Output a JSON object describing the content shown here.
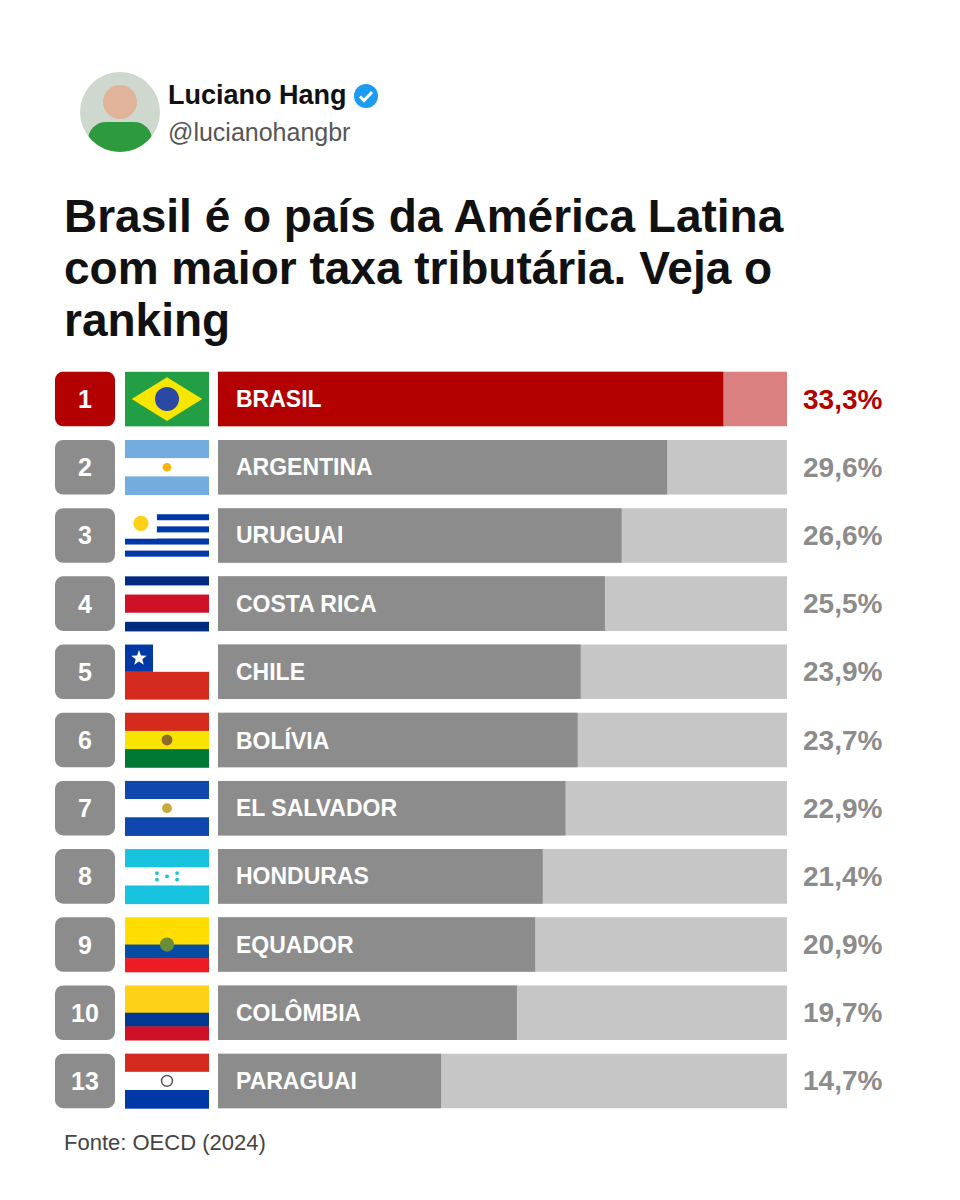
{
  "header": {
    "name": "Luciano Hang",
    "handle": "@lucianohangbr"
  },
  "chart_data": {
    "type": "bar",
    "orientation": "horizontal",
    "title": "Brasil é o país da América Latina com maior taxa tributária. Veja o ranking",
    "categories": [
      "BRASIL",
      "ARGENTINA",
      "URUGUAI",
      "COSTA RICA",
      "CHILE",
      "BOLÍVIA",
      "EL SALVADOR",
      "HONDURAS",
      "EQUADOR",
      "COLÔMBIA",
      "PARAGUAI"
    ],
    "ranks": [
      1,
      2,
      3,
      4,
      5,
      6,
      7,
      8,
      9,
      10,
      13
    ],
    "values": [
      33.3,
      29.6,
      26.6,
      25.5,
      23.9,
      23.7,
      22.9,
      21.4,
      20.9,
      19.7,
      14.7
    ],
    "value_labels": [
      "33,3%",
      "29,6%",
      "26,6%",
      "25,5%",
      "23,9%",
      "23,7%",
      "22,9%",
      "21,4%",
      "20,9%",
      "19,7%",
      "14,7%"
    ],
    "colors": [
      "#b30000",
      "#8c8c8c",
      "#8c8c8c",
      "#8c8c8c",
      "#8c8c8c",
      "#8c8c8c",
      "#8c8c8c",
      "#8c8c8c",
      "#8c8c8c",
      "#8c8c8c",
      "#8c8c8c"
    ],
    "xlim": [
      0,
      37.5
    ],
    "tick_labels": false,
    "grid": false,
    "data_labels": true,
    "source": "Fonte: OECD (2024)"
  }
}
